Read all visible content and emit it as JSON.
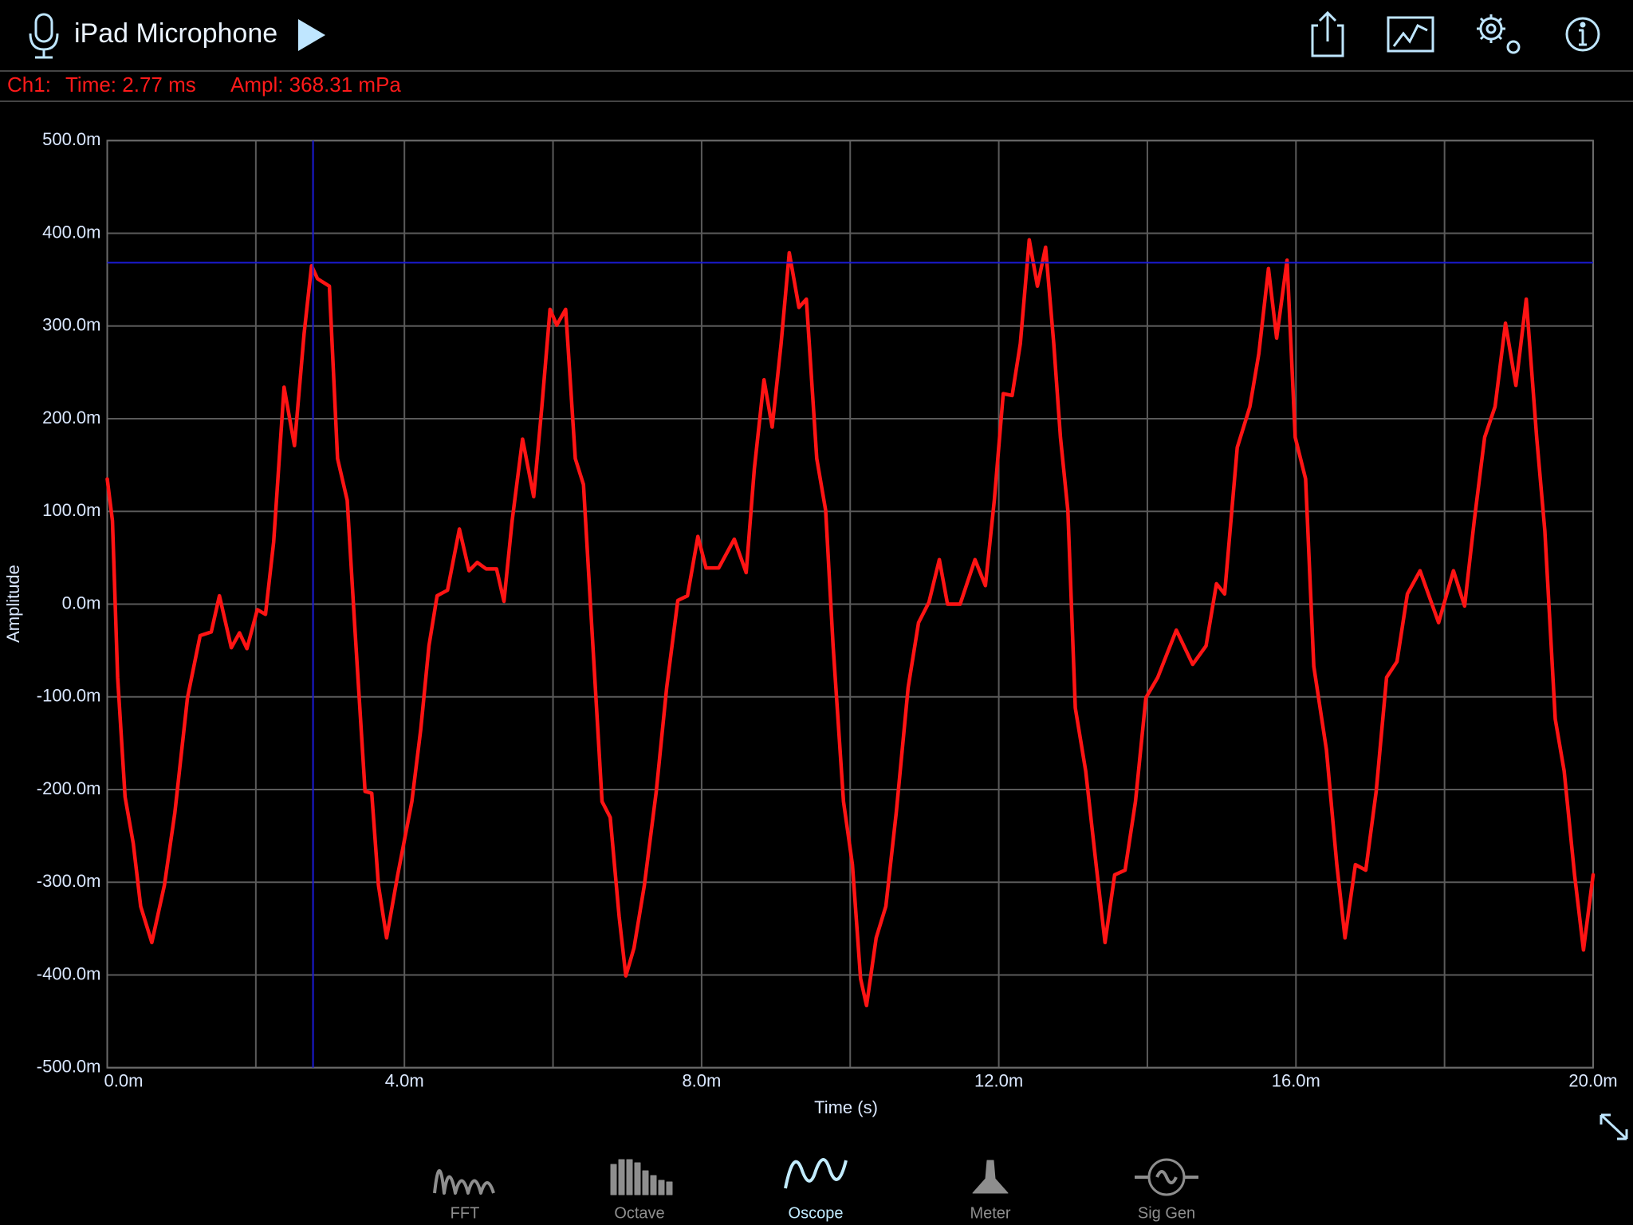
{
  "header": {
    "title": "iPad Microphone"
  },
  "status": {
    "channel": "Ch1:",
    "time": "Time: 2.77 ms",
    "amplitude": "Ampl: 368.31 mPa"
  },
  "chart_data": {
    "type": "line",
    "xlabel": "Time (s)",
    "ylabel": "Amplitude",
    "xlim": [
      0,
      0.02
    ],
    "xticks": [
      {
        "value": 0,
        "label": "0.0m"
      },
      {
        "value": 0.004,
        "label": "4.0m"
      },
      {
        "value": 0.008,
        "label": "8.0m"
      },
      {
        "value": 0.012,
        "label": "12.0m"
      },
      {
        "value": 0.016,
        "label": "16.0m"
      },
      {
        "value": 0.02,
        "label": "20.0m"
      }
    ],
    "xgrid": [
      0.002,
      0.006,
      0.01,
      0.014,
      0.018
    ],
    "ylim": [
      -0.5,
      0.5
    ],
    "yticks": [
      {
        "value": -0.5,
        "label": "-500.0m"
      },
      {
        "value": -0.4,
        "label": "-400.0m"
      },
      {
        "value": -0.3,
        "label": "-300.0m"
      },
      {
        "value": -0.2,
        "label": "-200.0m"
      },
      {
        "value": -0.1,
        "label": "-100.0m"
      },
      {
        "value": 0,
        "label": "0.0m"
      },
      {
        "value": 0.1,
        "label": "100.0m"
      },
      {
        "value": 0.2,
        "label": "200.0m"
      },
      {
        "value": 0.3,
        "label": "300.0m"
      },
      {
        "value": 0.4,
        "label": "400.0m"
      },
      {
        "value": 0.5,
        "label": "500.0m"
      }
    ],
    "grid": true,
    "cursor": {
      "x": 0.00277,
      "y": 0.36831,
      "color": "#1a1ad6"
    },
    "x": [
      0,
      7e-05,
      0.00014,
      0.00024,
      0.00035,
      0.00045,
      0.0006,
      0.00077,
      0.00091,
      0.00108,
      0.00125,
      0.0014,
      0.00151,
      0.00167,
      0.00178,
      0.00188,
      0.00202,
      0.00213,
      0.00224,
      0.00238,
      0.00252,
      0.00265,
      0.00275,
      0.00283,
      0.00299,
      0.0031,
      0.00323,
      0.00333,
      0.00347,
      0.00356,
      0.00365,
      0.00376,
      0.00391,
      0.0041,
      0.00422,
      0.00433,
      0.00444,
      0.00458,
      0.00474,
      0.00487,
      0.00498,
      0.0051,
      0.00524,
      0.00534,
      0.00545,
      0.00559,
      0.00574,
      0.00585,
      0.00596,
      0.00605,
      0.00617,
      0.0063,
      0.00641,
      0.00652,
      0.00666,
      0.00677,
      0.00689,
      0.00698,
      0.00709,
      0.00723,
      0.00739,
      0.00753,
      0.00768,
      0.00781,
      0.00795,
      0.00806,
      0.00823,
      0.00844,
      0.0086,
      0.00871,
      0.00884,
      0.00895,
      0.00907,
      0.00918,
      0.00931,
      0.00941,
      0.00955,
      0.00967,
      0.00977,
      0.00991,
      0.01003,
      0.01014,
      0.01022,
      0.01035,
      0.01048,
      0.01062,
      0.01078,
      0.01092,
      0.01106,
      0.0112,
      0.01131,
      0.01148,
      0.01168,
      0.01182,
      0.01194,
      0.01206,
      0.01218,
      0.01229,
      0.01241,
      0.01252,
      0.01263,
      0.01274,
      0.01283,
      0.01293,
      0.01303,
      0.01317,
      0.01331,
      0.01343,
      0.01356,
      0.0137,
      0.01384,
      0.01398,
      0.01414,
      0.01439,
      0.01461,
      0.01479,
      0.01493,
      0.01504,
      0.01521,
      0.01538,
      0.0155,
      0.01563,
      0.01574,
      0.01588,
      0.01599,
      0.01613,
      0.01624,
      0.01641,
      0.01655,
      0.01666,
      0.0168,
      0.01694,
      0.01708,
      0.01722,
      0.01736,
      0.0175,
      0.01767,
      0.01792,
      0.01812,
      0.01827,
      0.0184,
      0.01854,
      0.01868,
      0.01882,
      0.01896,
      0.0191,
      0.01924,
      0.01935,
      0.01949,
      0.01961,
      0.01975,
      0.01987,
      0.02
    ],
    "series": [
      {
        "color": "#ff1414",
        "values": [
          0.135,
          0.09,
          -0.079,
          -0.208,
          -0.258,
          -0.326,
          -0.365,
          -0.303,
          -0.225,
          -0.101,
          -0.034,
          -0.03,
          0.009,
          -0.047,
          -0.031,
          -0.048,
          -0.006,
          -0.011,
          0.067,
          0.234,
          0.171,
          0.292,
          0.365,
          0.351,
          0.343,
          0.157,
          0.112,
          -0.022,
          -0.202,
          -0.204,
          -0.303,
          -0.36,
          -0.292,
          -0.213,
          -0.135,
          -0.045,
          0.009,
          0.015,
          0.081,
          0.036,
          0.045,
          0.038,
          0.038,
          0.003,
          0.09,
          0.178,
          0.116,
          0.213,
          0.318,
          0.301,
          0.318,
          0.157,
          0.129,
          -0.022,
          -0.213,
          -0.23,
          -0.337,
          -0.401,
          -0.371,
          -0.303,
          -0.202,
          -0.09,
          0.004,
          0.009,
          0.073,
          0.039,
          0.039,
          0.07,
          0.034,
          0.146,
          0.242,
          0.191,
          0.281,
          0.379,
          0.32,
          0.329,
          0.157,
          0.101,
          -0.045,
          -0.213,
          -0.281,
          -0.404,
          -0.433,
          -0.36,
          -0.326,
          -0.225,
          -0.09,
          -0.02,
          0.002,
          0.048,
          0,
          0,
          0.048,
          0.02,
          0.112,
          0.227,
          0.225,
          0.281,
          0.393,
          0.343,
          0.385,
          0.281,
          0.18,
          0.101,
          -0.112,
          -0.18,
          -0.281,
          -0.365,
          -0.292,
          -0.287,
          -0.213,
          -0.101,
          -0.079,
          -0.028,
          -0.065,
          -0.045,
          0.022,
          0.011,
          0.169,
          0.213,
          0.27,
          0.362,
          0.287,
          0.371,
          0.18,
          0.135,
          -0.067,
          -0.157,
          -0.281,
          -0.36,
          -0.281,
          -0.287,
          -0.202,
          -0.079,
          -0.062,
          0.011,
          0.036,
          -0.02,
          0.036,
          -0.002,
          0.09,
          0.18,
          0.213,
          0.303,
          0.236,
          0.329,
          0.18,
          0.079,
          -0.124,
          -0.18,
          -0.292,
          -0.373,
          -0.292
        ]
      }
    ]
  },
  "tabs": [
    {
      "label": "FFT",
      "active": false
    },
    {
      "label": "Octave",
      "active": false
    },
    {
      "label": "Oscope",
      "active": true
    },
    {
      "label": "Meter",
      "active": false
    },
    {
      "label": "Sig Gen",
      "active": false
    }
  ]
}
